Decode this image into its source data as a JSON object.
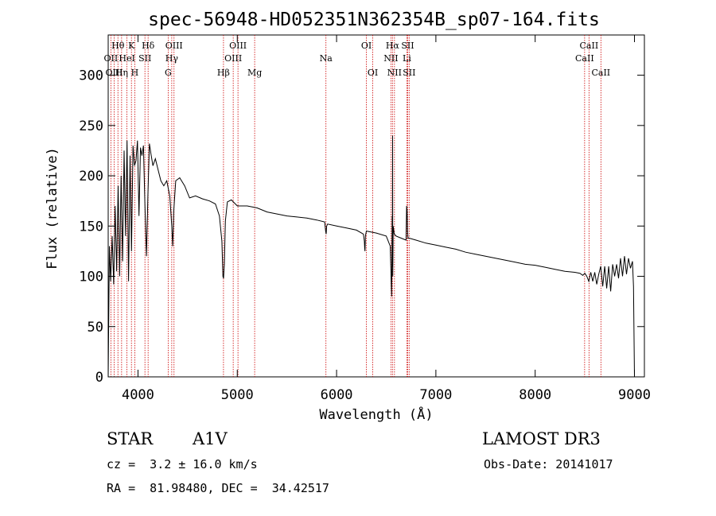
{
  "chart_data": {
    "type": "line",
    "title": "spec-56948-HD052351N362354B_sp07-164.fits",
    "xlabel": "Wavelength (Å)",
    "ylabel": "Flux (relative)",
    "xlim": [
      3700,
      9100
    ],
    "ylim": [
      0,
      340
    ],
    "xticks": [
      4000,
      5000,
      6000,
      7000,
      8000,
      9000
    ],
    "yticks": [
      0,
      50,
      100,
      150,
      200,
      250,
      300
    ],
    "grid": false,
    "line_color": "#000000",
    "marker_color": "#cc0000",
    "series": [
      {
        "x": [
          3700,
          3712,
          3725,
          3740,
          3755,
          3770,
          3785,
          3800,
          3815,
          3830,
          3845,
          3860,
          3875,
          3890,
          3905,
          3920,
          3935,
          3950,
          3965,
          3980,
          3995,
          4010,
          4025,
          4040,
          4055,
          4070,
          4085,
          4100,
          4115,
          4130,
          4150,
          4175,
          4200,
          4230,
          4260,
          4290,
          4320,
          4340,
          4350,
          4360,
          4380,
          4420,
          4470,
          4520,
          4580,
          4650,
          4720,
          4780,
          4820,
          4845,
          4855,
          4862,
          4870,
          4880,
          4900,
          4940,
          5000,
          5100,
          5200,
          5300,
          5400,
          5500,
          5600,
          5700,
          5800,
          5880,
          5890,
          5895,
          5900,
          5910,
          6000,
          6100,
          6200,
          6270,
          6280,
          6283,
          6286,
          6290,
          6300,
          6400,
          6500,
          6540,
          6555,
          6560,
          6562,
          6564,
          6566,
          6570,
          6580,
          6600,
          6650,
          6700,
          6705,
          6710,
          6715,
          6720,
          6730,
          6800,
          6900,
          7000,
          7100,
          7200,
          7300,
          7400,
          7500,
          7600,
          7700,
          7800,
          7900,
          8000,
          8100,
          8200,
          8300,
          8400,
          8450,
          8480,
          8500,
          8520,
          8540,
          8560,
          8580,
          8600,
          8620,
          8640,
          8660,
          8680,
          8700,
          8720,
          8740,
          8760,
          8780,
          8800,
          8820,
          8840,
          8860,
          8880,
          8900,
          8920,
          8940,
          8960,
          8980,
          8990,
          9000
        ],
        "y": [
          0,
          130,
          95,
          140,
          92,
          170,
          105,
          190,
          100,
          200,
          115,
          225,
          140,
          235,
          95,
          220,
          125,
          230,
          210,
          215,
          235,
          160,
          228,
          220,
          230,
          170,
          120,
          180,
          232,
          222,
          210,
          217,
          207,
          195,
          190,
          195,
          180,
          150,
          130,
          165,
          195,
          198,
          190,
          178,
          180,
          177,
          175,
          172,
          160,
          135,
          100,
          98,
          112,
          155,
          174,
          176,
          170,
          170,
          168,
          164,
          162,
          160,
          159,
          158,
          156,
          154,
          145,
          142,
          150,
          152,
          150,
          148,
          146,
          142,
          135,
          128,
          125,
          140,
          145,
          143,
          140,
          130,
          80,
          160,
          110,
          240,
          100,
          150,
          142,
          140,
          138,
          136,
          170,
          165,
          145,
          138,
          138,
          136,
          133,
          131,
          129,
          127,
          124,
          122,
          120,
          118,
          116,
          114,
          112,
          111,
          109,
          107,
          105,
          104,
          103,
          101,
          103,
          100,
          95,
          104,
          95,
          104,
          92,
          102,
          110,
          90,
          110,
          88,
          110,
          85,
          112,
          100,
          112,
          98,
          118,
          100,
          120,
          102,
          118,
          108,
          115,
          90,
          0
        ]
      }
    ],
    "line_markers": [
      {
        "name": "Hθ",
        "wavelength": 3798,
        "row": 0
      },
      {
        "name": "OII",
        "wavelength": 3727,
        "row": 1
      },
      {
        "name": "OIII",
        "wavelength": 3760,
        "row": 2
      },
      {
        "name": "Hη",
        "wavelength": 3835,
        "row": 2
      },
      {
        "name": "HeI",
        "wavelength": 3889,
        "row": 1
      },
      {
        "name": "K",
        "wavelength": 3934,
        "row": 0
      },
      {
        "name": "H",
        "wavelength": 3968,
        "row": 2
      },
      {
        "name": "SII",
        "wavelength": 4070,
        "row": 1
      },
      {
        "name": "Hδ",
        "wavelength": 4102,
        "row": 0
      },
      {
        "name": "OIII",
        "wavelength": 4363,
        "row": 0
      },
      {
        "name": "Hγ",
        "wavelength": 4340,
        "row": 1
      },
      {
        "name": "G",
        "wavelength": 4304,
        "row": 2
      },
      {
        "name": "Hβ",
        "wavelength": 4861,
        "row": 2
      },
      {
        "name": "OIII",
        "wavelength": 5007,
        "row": 0
      },
      {
        "name": "OIII",
        "wavelength": 4959,
        "row": 1
      },
      {
        "name": "Mg",
        "wavelength": 5175,
        "row": 2
      },
      {
        "name": "Na",
        "wavelength": 5893,
        "row": 1
      },
      {
        "name": "OI",
        "wavelength": 6300,
        "row": 0
      },
      {
        "name": "OI",
        "wavelength": 6364,
        "row": 2
      },
      {
        "name": "Hα",
        "wavelength": 6563,
        "row": 0
      },
      {
        "name": "NII",
        "wavelength": 6548,
        "row": 1
      },
      {
        "name": "NII",
        "wavelength": 6583,
        "row": 2
      },
      {
        "name": "SII",
        "wavelength": 6716,
        "row": 0
      },
      {
        "name": "Li",
        "wavelength": 6708,
        "row": 1
      },
      {
        "name": "SII",
        "wavelength": 6731,
        "row": 2
      },
      {
        "name": "CaII",
        "wavelength": 8542,
        "row": 0
      },
      {
        "name": "CaII",
        "wavelength": 8498,
        "row": 1
      },
      {
        "name": "CaII",
        "wavelength": 8662,
        "row": 2
      }
    ]
  },
  "info": {
    "class": "STAR",
    "subclass": "A1V",
    "survey": "LAMOST DR3",
    "redshift": "cz =  3.2 ± 16.0 km/s",
    "obs_date": "Obs-Date: 20141017",
    "coords": "RA =  81.98480, DEC =  34.42517"
  }
}
